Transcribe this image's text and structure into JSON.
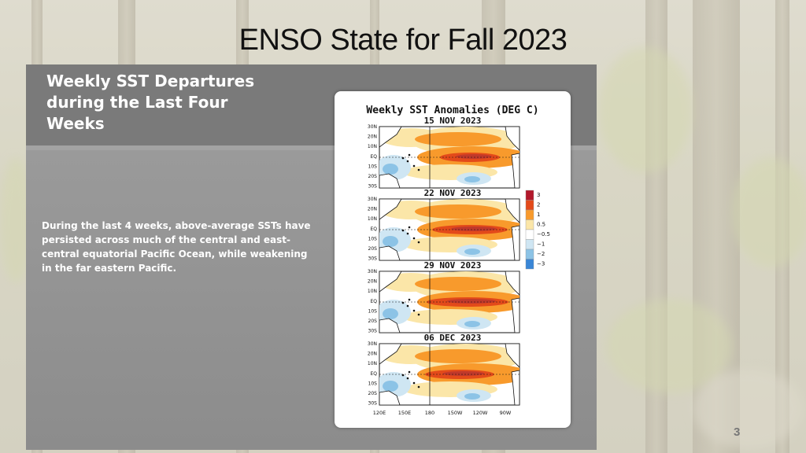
{
  "slide": {
    "title": "ENSO State for Fall 2023",
    "slide_number": "3"
  },
  "panel": {
    "heading": "Weekly SST Departures during the Last Four Weeks",
    "body": "During the last 4 weeks, above-average SSTs have persisted across much of the central and east-central equatorial Pacific Ocean, while weakening in the far eastern Pacific."
  },
  "figure": {
    "title": "Weekly SST Anomalies (DEG C)",
    "maps": [
      {
        "date": "15 NOV 2023"
      },
      {
        "date": "22 NOV 2023"
      },
      {
        "date": "29 NOV 2023"
      },
      {
        "date": "06 DEC 2023"
      }
    ],
    "lat_labels": [
      "30N",
      "20N",
      "10N",
      "EQ",
      "10S",
      "20S",
      "30S"
    ],
    "lon_labels": [
      "120E",
      "150E",
      "180",
      "150W",
      "120W",
      "90W"
    ],
    "legend": [
      {
        "label": "3",
        "color": "#b2182b"
      },
      {
        "label": "2",
        "color": "#e34a1a"
      },
      {
        "label": "1",
        "color": "#f89a2c"
      },
      {
        "label": "0.5",
        "color": "#fbe6a8"
      },
      {
        "label": "−0.5",
        "color": "#ffffff"
      },
      {
        "label": "−1",
        "color": "#cfe6f3"
      },
      {
        "label": "−2",
        "color": "#8cc3e6"
      },
      {
        "label": "−3",
        "color": "#3a86d6"
      }
    ]
  }
}
